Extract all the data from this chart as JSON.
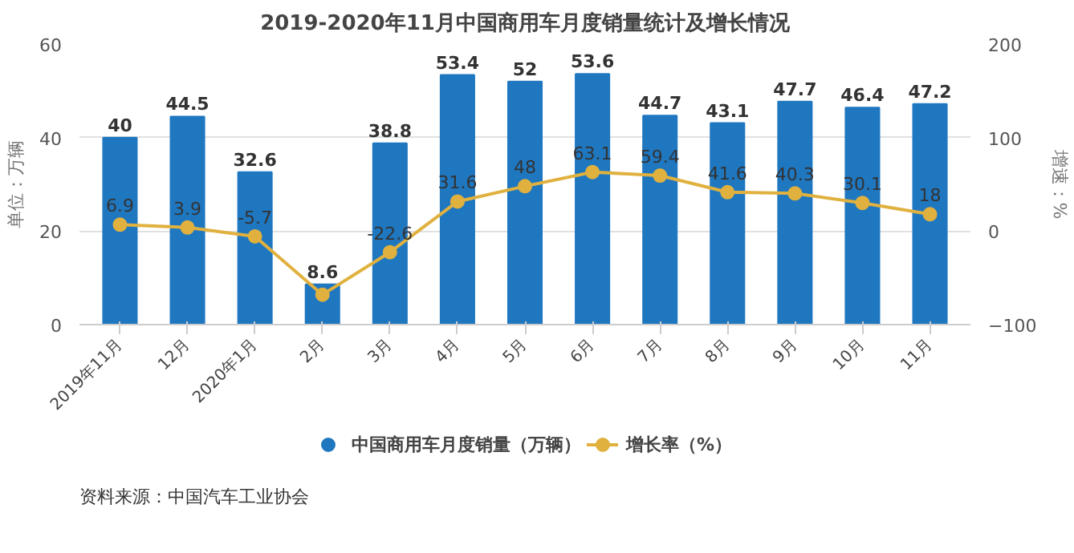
{
  "chart_data": {
    "type": "bar",
    "title": "2019-2020年11月中国商用车月度销量统计及增长情况",
    "categories": [
      "2019年11月",
      "12月",
      "2020年1月",
      "2月",
      "3月",
      "4月",
      "5月",
      "6月",
      "7月",
      "8月",
      "9月",
      "10月",
      "11月"
    ],
    "series": [
      {
        "name": "中国商用车月度销量（万辆）",
        "color": "#1f77c0",
        "values": [
          40,
          44.5,
          32.6,
          8.6,
          38.8,
          53.4,
          52,
          53.6,
          44.7,
          43.1,
          47.7,
          46.4,
          47.2
        ]
      },
      {
        "name": "增长率（%）",
        "type": "line",
        "axis": "y2",
        "color": "#e0b13e",
        "marker": "circle",
        "values": [
          6.9,
          3.9,
          -5.7,
          -68,
          -22.6,
          31.6,
          48,
          63.1,
          59.4,
          41.6,
          40.3,
          30.1,
          18
        ],
        "value_labels": [
          "6.9",
          "3.9",
          "-5.7",
          null,
          "-22.6",
          "31.6",
          "48",
          "63.1",
          "59.4",
          "41.6",
          "40.3",
          "30.1",
          "18"
        ]
      }
    ],
    "data_labels": true,
    "ylabel": "单位：万辆",
    "y2label": "增速：%",
    "ylim": [
      0,
      60
    ],
    "yticks": [
      0,
      20,
      40,
      60
    ],
    "y2lim": [
      -100,
      200
    ],
    "y2ticks": [
      -100,
      0,
      100,
      200
    ],
    "grid": "y",
    "legend": "bottom",
    "annotations": [
      "资料来源：中国汽车工业协会"
    ]
  }
}
